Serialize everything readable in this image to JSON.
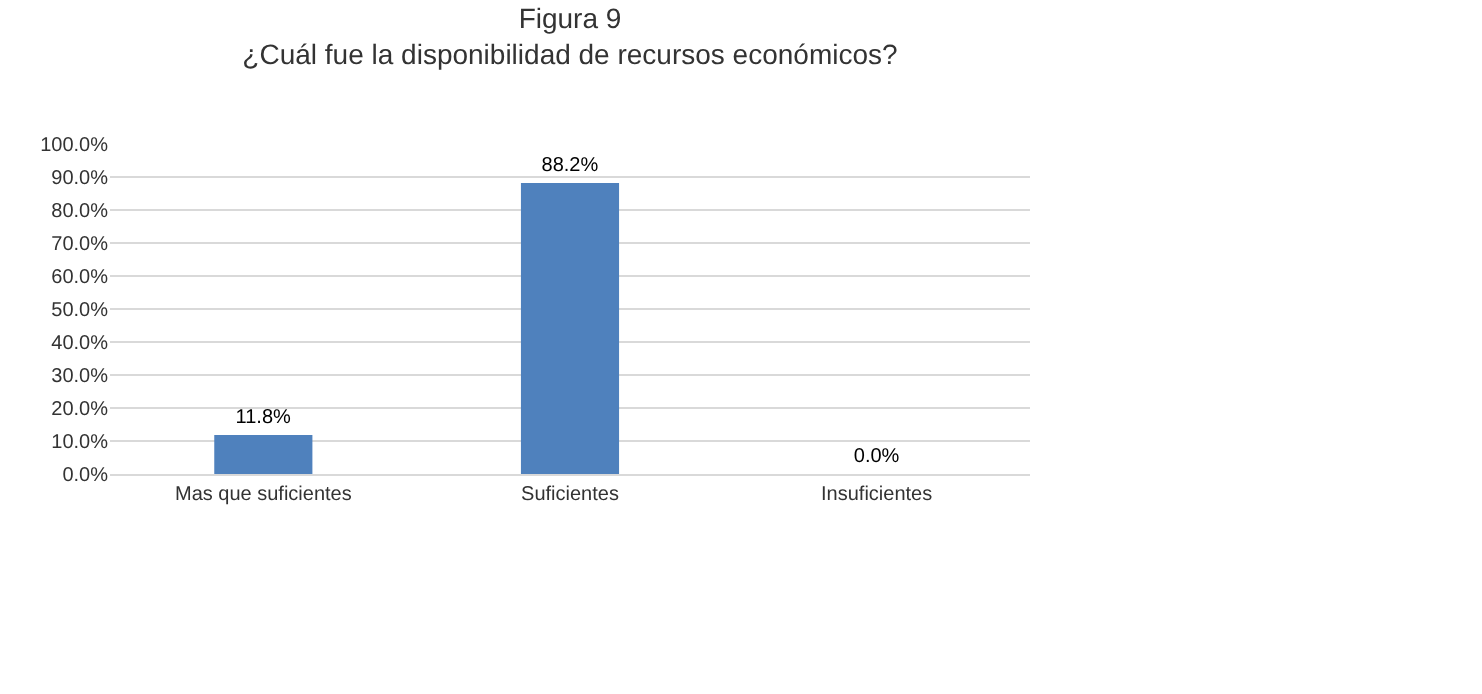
{
  "chart_data": {
    "type": "bar",
    "title": "Figura 9\n¿Cuál fue la disponibilidad de recursos económicos?",
    "categories": [
      "Mas que suficientes",
      "Suficientes",
      "Insuficientes"
    ],
    "values": [
      11.8,
      88.2,
      0.0
    ],
    "color": "#4f81bd",
    "value_labels": [
      "11.8%",
      "88.2%",
      "0.0%"
    ],
    "ylim": [
      0,
      100
    ],
    "yticks": [
      {
        "value": 0,
        "label": "0.0%"
      },
      {
        "value": 10,
        "label": "10.0%"
      },
      {
        "value": 20,
        "label": "20.0%"
      },
      {
        "value": 30,
        "label": "30.0%"
      },
      {
        "value": 40,
        "label": "40.0%"
      },
      {
        "value": 50,
        "label": "50.0%"
      },
      {
        "value": 60,
        "label": "60.0%"
      },
      {
        "value": 70,
        "label": "70.0%"
      },
      {
        "value": 80,
        "label": "80.0%"
      },
      {
        "value": 90,
        "label": "90.0%"
      },
      {
        "value": 100,
        "label": "100.0%"
      }
    ],
    "grid": "y",
    "legend": false
  }
}
